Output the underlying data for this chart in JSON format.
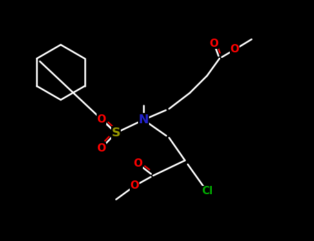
{
  "background": "#000000",
  "bond_color": "#ffffff",
  "bond_width": 1.8,
  "atom_colors": {
    "S": "#999900",
    "N": "#2222cc",
    "O": "#ff0000",
    "Cl": "#00aa00",
    "C": "#ffffff"
  },
  "figsize": [
    4.55,
    3.5
  ],
  "dpi": 100,
  "bonds": [],
  "labels": []
}
